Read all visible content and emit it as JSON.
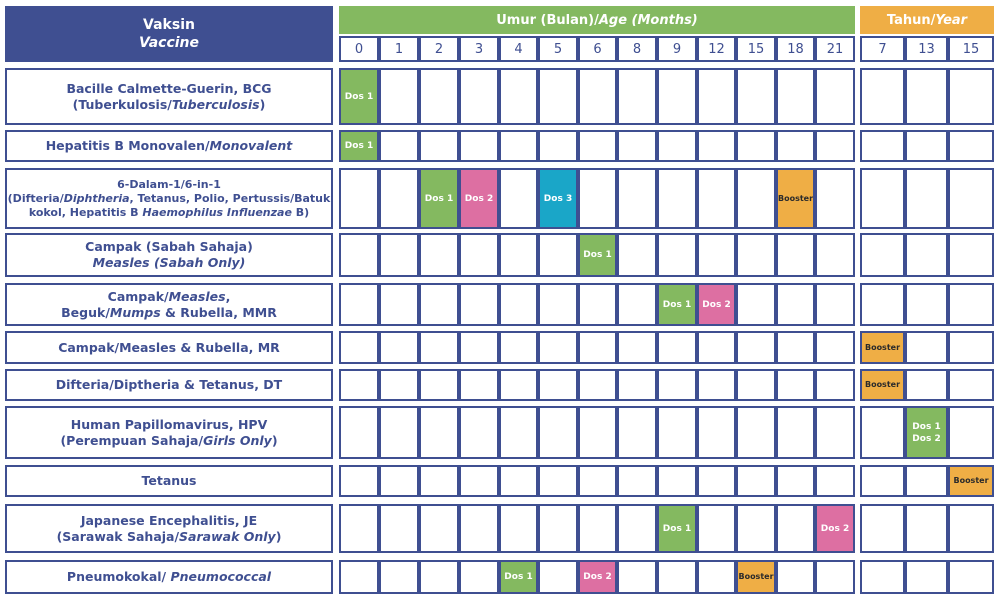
{
  "header": {
    "vaccine_ms": "Vaksin",
    "vaccine_en": "Vaccine",
    "months_ms": "Umur (Bulan)/",
    "months_en": "Age (Months)",
    "years_ms": "Tahun/",
    "years_en": "Year"
  },
  "month_ticks": [
    "0",
    "1",
    "2",
    "3",
    "4",
    "5",
    "6",
    "8",
    "9",
    "12",
    "15",
    "18",
    "21"
  ],
  "year_ticks": [
    "7",
    "13",
    "15"
  ],
  "colors": {
    "navy": "#3f4f91",
    "green": "#84b960",
    "pink": "#dd6fa2",
    "cyan": "#1aa6c8",
    "orange": "#efae45"
  },
  "vaccines": [
    {
      "lines": [
        [
          {
            "t": "Bacille Calmette-Guerin, BCG"
          }
        ],
        [
          {
            "t": "(Tuberkulosis/"
          },
          {
            "t": "Tuberculosis",
            "i": true
          },
          {
            "t": ")"
          }
        ]
      ],
      "doses": [
        {
          "col": 0,
          "label": "Dos 1",
          "color": "green"
        }
      ]
    },
    {
      "lines": [
        [
          {
            "t": "Hepatitis B Monovalen/"
          },
          {
            "t": "Monovalent",
            "i": true
          }
        ]
      ],
      "doses": [
        {
          "col": 0,
          "label": "Dos 1",
          "color": "green"
        }
      ]
    },
    {
      "small": true,
      "lines": [
        [
          {
            "t": "6-Dalam-1/6-in-1"
          }
        ],
        [
          {
            "t": "(Difteria/"
          },
          {
            "t": "Diphtheria",
            "i": true
          },
          {
            "t": ", Tetanus, Polio, Pertussis/Batuk"
          }
        ],
        [
          {
            "t": "kokol, Hepatitis B "
          },
          {
            "t": "Haemophilus Influenzae",
            "i": true
          },
          {
            "t": " B)"
          }
        ]
      ],
      "doses": [
        {
          "col": 2,
          "label": "Dos 1",
          "color": "green"
        },
        {
          "col": 3,
          "label": "Dos 2",
          "color": "pink"
        },
        {
          "col": 5,
          "label": "Dos 3",
          "color": "cyan"
        },
        {
          "col": 11,
          "label": "Booster",
          "color": "orange"
        }
      ]
    },
    {
      "lines": [
        [
          {
            "t": "Campak (Sabah Sahaja)"
          }
        ],
        [
          {
            "t": "Measles (Sabah Only)",
            "i": true
          }
        ]
      ],
      "doses": [
        {
          "col": 6,
          "label": "Dos 1",
          "color": "green"
        }
      ]
    },
    {
      "lines": [
        [
          {
            "t": "Campak/"
          },
          {
            "t": "Measles",
            "i": true
          },
          {
            "t": ","
          }
        ],
        [
          {
            "t": "Beguk/"
          },
          {
            "t": "Mumps",
            "i": true
          },
          {
            "t": " & Rubella, MMR"
          }
        ]
      ],
      "doses": [
        {
          "col": 8,
          "label": "Dos 1",
          "color": "green"
        },
        {
          "col": 9,
          "label": "Dos 2",
          "color": "pink"
        }
      ]
    },
    {
      "lines": [
        [
          {
            "t": "Campak/Measles & Rubella, MR"
          }
        ]
      ],
      "doses": [
        {
          "col": 13,
          "label": "Booster",
          "color": "orange"
        }
      ]
    },
    {
      "lines": [
        [
          {
            "t": "Difteria/Diptheria & Tetanus, DT"
          }
        ]
      ],
      "doses": [
        {
          "col": 13,
          "label": "Booster",
          "color": "orange"
        }
      ]
    },
    {
      "lines": [
        [
          {
            "t": "Human Papillomavirus, HPV"
          }
        ],
        [
          {
            "t": "(Perempuan Sahaja/"
          },
          {
            "t": "Girls Only",
            "i": true
          },
          {
            "t": ")"
          }
        ]
      ],
      "doses": [
        {
          "col": 14,
          "label": "Dos 1",
          "label2": "Dos 2",
          "color": "green"
        }
      ]
    },
    {
      "lines": [
        [
          {
            "t": "Tetanus"
          }
        ]
      ],
      "doses": [
        {
          "col": 15,
          "label": "Booster",
          "color": "orange"
        }
      ]
    },
    {
      "lines": [
        [
          {
            "t": "Japanese Encephalitis, JE"
          }
        ],
        [
          {
            "t": "(Sarawak Sahaja/"
          },
          {
            "t": "Sarawak Only",
            "i": true
          },
          {
            "t": ")"
          }
        ]
      ],
      "doses": [
        {
          "col": 8,
          "label": "Dos 1",
          "color": "green"
        },
        {
          "col": 12,
          "label": "Dos 2",
          "color": "pink"
        }
      ]
    },
    {
      "lines": [
        [
          {
            "t": "Pneumokokal/ "
          },
          {
            "t": "Pneumococcal",
            "i": true
          }
        ]
      ],
      "doses": [
        {
          "col": 4,
          "label": "Dos 1",
          "color": "green"
        },
        {
          "col": 6,
          "label": "Dos 2",
          "color": "pink"
        },
        {
          "col": 10,
          "label": "Booster",
          "color": "orange"
        }
      ]
    }
  ]
}
